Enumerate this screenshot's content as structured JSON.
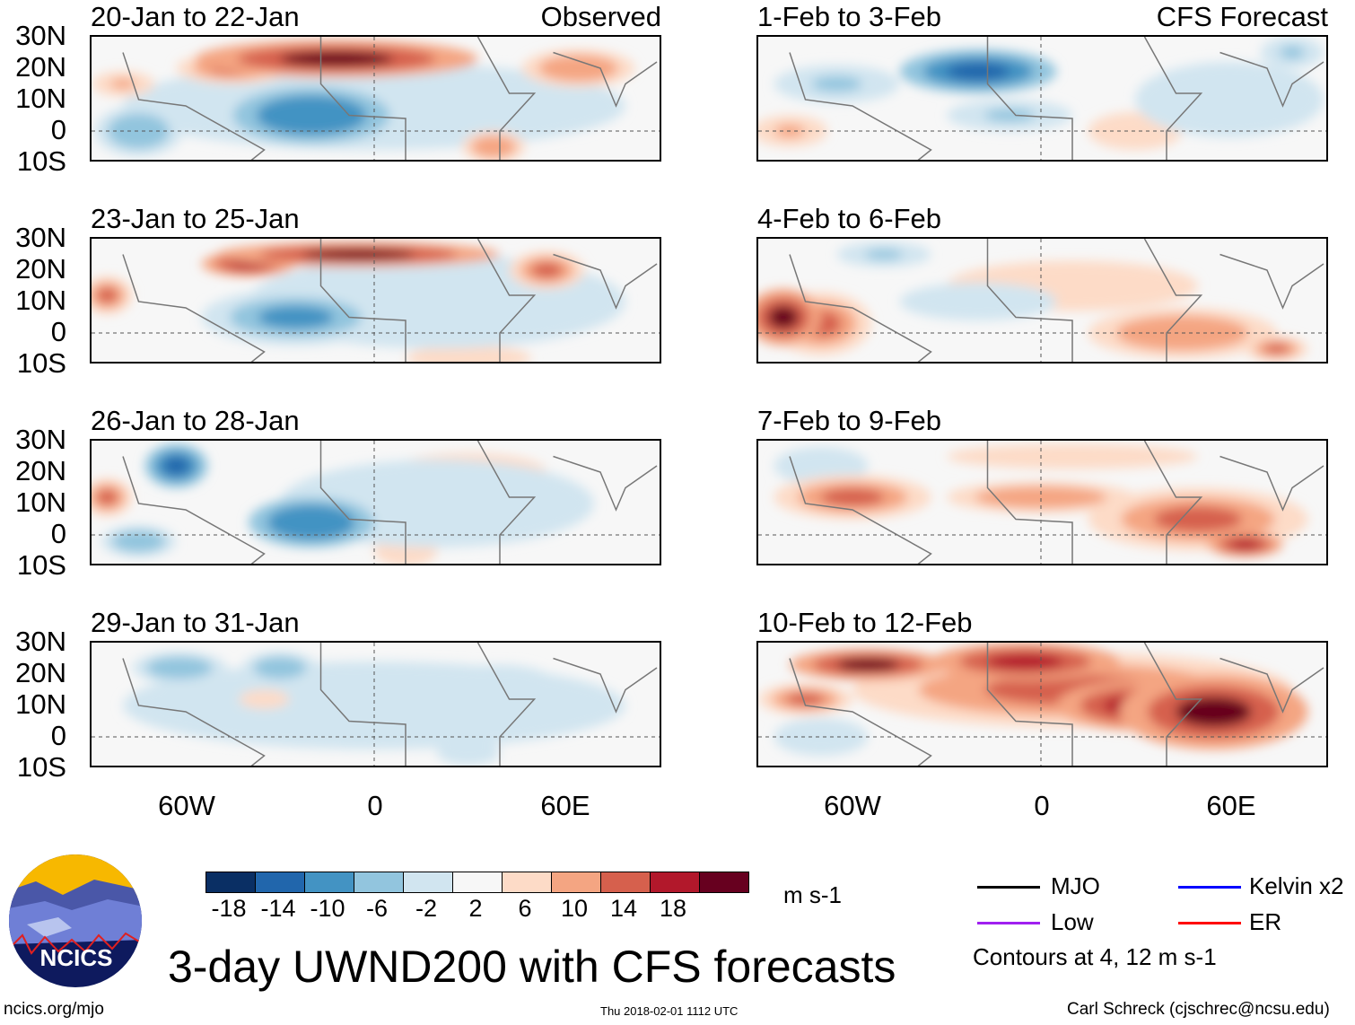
{
  "panels": [
    {
      "title": "20-Jan to 22-Jan",
      "tag": "Observed",
      "blobs": [
        [
          -12,
          23,
          45,
          6,
          18
        ],
        [
          -45,
          20,
          18,
          5,
          12
        ],
        [
          -20,
          5,
          25,
          9,
          -14
        ],
        [
          -75,
          0,
          14,
          8,
          -10
        ],
        [
          0,
          8,
          80,
          14,
          -4
        ],
        [
          65,
          20,
          18,
          6,
          8
        ],
        [
          38,
          -5,
          10,
          5,
          8
        ],
        [
          -80,
          15,
          10,
          4,
          6
        ]
      ]
    },
    {
      "title": "1-Feb to 3-Feb",
      "tag": "CFS Forecast",
      "blobs": [
        [
          -20,
          19,
          25,
          7,
          -18
        ],
        [
          -65,
          15,
          20,
          6,
          -8
        ],
        [
          -80,
          0,
          12,
          5,
          6
        ],
        [
          -10,
          5,
          20,
          5,
          -8
        ],
        [
          30,
          0,
          15,
          6,
          4
        ],
        [
          60,
          10,
          30,
          12,
          -4
        ],
        [
          80,
          25,
          10,
          5,
          -8
        ]
      ]
    },
    {
      "title": "23-Jan to 25-Jan",
      "tag": "",
      "blobs": [
        [
          -5,
          25,
          45,
          4,
          18
        ],
        [
          -40,
          22,
          15,
          4,
          14
        ],
        [
          -85,
          12,
          8,
          6,
          10
        ],
        [
          -25,
          5,
          30,
          9,
          -12
        ],
        [
          55,
          20,
          12,
          6,
          12
        ],
        [
          20,
          10,
          60,
          15,
          -5
        ],
        [
          30,
          -8,
          20,
          4,
          4
        ]
      ]
    },
    {
      "title": "4-Feb to 6-Feb",
      "tag": "",
      "blobs": [
        [
          -82,
          5,
          12,
          9,
          18
        ],
        [
          -70,
          3,
          16,
          10,
          10
        ],
        [
          45,
          0,
          30,
          8,
          8
        ],
        [
          -50,
          25,
          15,
          4,
          -8
        ],
        [
          10,
          15,
          40,
          8,
          4
        ],
        [
          -20,
          10,
          25,
          6,
          -6
        ],
        [
          75,
          -5,
          10,
          4,
          10
        ]
      ]
    },
    {
      "title": "26-Jan to 28-Jan",
      "tag": "",
      "blobs": [
        [
          -63,
          22,
          10,
          7,
          -18
        ],
        [
          -85,
          12,
          8,
          6,
          10
        ],
        [
          -20,
          4,
          20,
          8,
          -14
        ],
        [
          20,
          10,
          50,
          14,
          -5
        ],
        [
          -75,
          -2,
          12,
          5,
          -10
        ],
        [
          30,
          20,
          25,
          6,
          4
        ],
        [
          10,
          -5,
          10,
          5,
          4
        ]
      ]
    },
    {
      "title": "7-Feb to 9-Feb",
      "tag": "",
      "blobs": [
        [
          -60,
          12,
          25,
          7,
          12
        ],
        [
          50,
          5,
          35,
          10,
          10
        ],
        [
          65,
          -3,
          12,
          4,
          16
        ],
        [
          0,
          12,
          30,
          5,
          8
        ],
        [
          -70,
          22,
          15,
          6,
          -6
        ],
        [
          10,
          25,
          40,
          4,
          4
        ]
      ]
    },
    {
      "title": "29-Jan to 31-Jan",
      "tag": "",
      "blobs": [
        [
          -62,
          22,
          15,
          5,
          -10
        ],
        [
          -30,
          22,
          12,
          5,
          -10
        ],
        [
          0,
          10,
          80,
          14,
          -4
        ],
        [
          -35,
          12,
          8,
          3,
          4
        ],
        [
          40,
          15,
          20,
          8,
          -6
        ],
        [
          30,
          -5,
          10,
          4,
          -6
        ]
      ]
    },
    {
      "title": "10-Feb to 12-Feb",
      "tag": "",
      "blobs": [
        [
          -55,
          23,
          25,
          5,
          18
        ],
        [
          -5,
          24,
          30,
          6,
          16
        ],
        [
          55,
          8,
          30,
          12,
          18
        ],
        [
          30,
          10,
          25,
          8,
          14
        ],
        [
          -70,
          0,
          15,
          6,
          -4
        ],
        [
          10,
          15,
          70,
          12,
          10
        ],
        [
          -75,
          12,
          15,
          5,
          10
        ]
      ]
    }
  ],
  "lat_labels": [
    "30N",
    "20N",
    "10N",
    "0",
    "10S"
  ],
  "lon_labels": [
    "60W",
    "0",
    "60E"
  ],
  "colorbar": {
    "colors": [
      "#0a2f64",
      "#2166ac",
      "#4393c3",
      "#92c5de",
      "#d1e5f0",
      "#f7f7f7",
      "#fddbc7",
      "#f4a582",
      "#d6604d",
      "#b2182b",
      "#67001f"
    ],
    "labels": [
      "-18",
      "-14",
      "-10",
      "-6",
      "-2",
      "2",
      "6",
      "10",
      "14",
      "18"
    ],
    "units": "m s-1"
  },
  "legend": {
    "items": [
      {
        "label": "MJO",
        "color": "#000000"
      },
      {
        "label": "Kelvin x2",
        "color": "#0000ff"
      },
      {
        "label": "Low",
        "color": "#a020f0"
      },
      {
        "label": "ER",
        "color": "#ff0000"
      }
    ],
    "note": "Contours at 4, 12 m s-1"
  },
  "title": "3-day UWND200 with CFS forecasts",
  "logo": "NCICS",
  "footer": {
    "url": "ncics.org/mjo",
    "timestamp": "Thu 2018-02-01 1112 UTC",
    "credit": "Carl Schreck (cjschrec@ncsu.edu)"
  }
}
